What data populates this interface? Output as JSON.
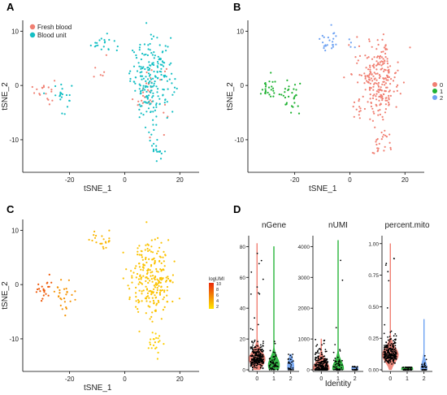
{
  "figure": {
    "panel_labels": [
      "A",
      "B",
      "C",
      "D"
    ]
  },
  "chart_data": [
    {
      "panel": "A",
      "type": "scatter",
      "xlabel": "tSNE_1",
      "ylabel": "tSNE_2",
      "xticks": [
        -20,
        0,
        20
      ],
      "yticks": [
        -10,
        0,
        10
      ],
      "xlim": [
        -37,
        27
      ],
      "ylim": [
        -16,
        12
      ],
      "legend": "top-left",
      "series": [
        {
          "name": "Fresh blood",
          "color": "#f07f72",
          "clusters": [
            {
              "cx": -29,
              "cy": -1,
              "sx": 3,
              "sy": 2,
              "n": 18
            },
            {
              "cx": 9,
              "cy": -1,
              "sx": 6,
              "sy": 5,
              "n": 30
            },
            {
              "cx": -8,
              "cy": 3,
              "sx": 3,
              "sy": 3,
              "n": 6
            }
          ]
        },
        {
          "name": "Blood unit",
          "color": "#14bfc4",
          "clusters": [
            {
              "cx": -23,
              "cy": -2,
              "sx": 3,
              "sy": 2.5,
              "n": 22
            },
            {
              "cx": -8,
              "cy": 8,
              "sx": 3.5,
              "sy": 1.6,
              "n": 20
            },
            {
              "cx": 10,
              "cy": 1,
              "sx": 6.5,
              "sy": 6,
              "n": 210
            },
            {
              "cx": 11,
              "cy": -11,
              "sx": 3,
              "sy": 2,
              "n": 20
            }
          ]
        }
      ]
    },
    {
      "panel": "B",
      "type": "scatter",
      "xlabel": "tSNE_1",
      "ylabel": "tSNE_2",
      "xticks": [
        -20,
        0,
        20
      ],
      "yticks": [
        -10,
        0,
        10
      ],
      "xlim": [
        -37,
        27
      ],
      "ylim": [
        -16,
        12
      ],
      "legend": "right",
      "series": [
        {
          "name": "0",
          "color": "#f07f72",
          "clusters": [
            {
              "cx": 10,
              "cy": 1,
              "sx": 6.5,
              "sy": 6,
              "n": 250
            },
            {
              "cx": 11,
              "cy": -11,
              "sx": 3,
              "sy": 2,
              "n": 22
            }
          ]
        },
        {
          "name": "1",
          "color": "#1fb232",
          "clusters": [
            {
              "cx": -29,
              "cy": -0.5,
              "sx": 3,
              "sy": 2,
              "n": 25
            },
            {
              "cx": -22,
              "cy": -2,
              "sx": 3,
              "sy": 2.5,
              "n": 30
            }
          ]
        },
        {
          "name": "2",
          "color": "#6ea2f2",
          "clusters": [
            {
              "cx": -8,
              "cy": 8,
              "sx": 3.5,
              "sy": 1.6,
              "n": 24
            },
            {
              "cx": 1,
              "cy": 8,
              "sx": 2,
              "sy": 2,
              "n": 4
            }
          ]
        }
      ]
    },
    {
      "panel": "C",
      "type": "scatter",
      "xlabel": "tSNE_1",
      "ylabel": "tSNE_2",
      "xticks": [
        -20,
        0,
        20
      ],
      "yticks": [
        -10,
        0,
        10
      ],
      "xlim": [
        -37,
        27
      ],
      "ylim": [
        -16,
        12
      ],
      "legend": "right",
      "color_scale": {
        "name": "logUMI",
        "ticks": [
          10,
          8,
          6,
          4,
          2
        ],
        "low_color": "#ffe600",
        "high_color": "#e8280a"
      },
      "clusters": [
        {
          "cx": -29,
          "cy": -0.5,
          "sx": 3,
          "sy": 2,
          "n": 22,
          "value": 8
        },
        {
          "cx": -22,
          "cy": -2,
          "sx": 3,
          "sy": 2.5,
          "n": 28,
          "value": 5.5
        },
        {
          "cx": -8,
          "cy": 8,
          "sx": 3.5,
          "sy": 1.6,
          "n": 22,
          "value": 4
        },
        {
          "cx": 10,
          "cy": 1,
          "sx": 6.5,
          "sy": 6,
          "n": 240,
          "value": 3.5
        },
        {
          "cx": 11,
          "cy": -11,
          "sx": 3,
          "sy": 2,
          "n": 20,
          "value": 3
        }
      ]
    },
    {
      "panel": "D",
      "type": "violin",
      "xlabel": "Identity",
      "categories": [
        "0",
        "1",
        "2"
      ],
      "colors": [
        "#f07f72",
        "#1fb232",
        "#6ea2f2"
      ],
      "subplots": [
        {
          "title": "nGene",
          "yticks": [
            0,
            20,
            40,
            60,
            80
          ],
          "ylim": [
            0,
            86
          ],
          "medians": [
            7,
            3,
            2
          ],
          "maxima": [
            82,
            80,
            10
          ],
          "n": [
            260,
            55,
            28
          ]
        },
        {
          "title": "nUMI",
          "yticks": [
            0,
            1000,
            2000,
            3000,
            4000
          ],
          "ylim": [
            0,
            4300
          ],
          "medians": [
            40,
            30,
            20
          ],
          "maxima": [
            1000,
            4200,
            100
          ],
          "n": [
            260,
            55,
            28
          ]
        },
        {
          "title": "percent.mito",
          "yticks": [
            0.0,
            0.25,
            0.5,
            0.75,
            1.0
          ],
          "ylim": [
            0,
            1.05
          ],
          "medians": [
            0.12,
            0,
            0
          ],
          "maxima": [
            1.0,
            0.02,
            0.4
          ],
          "n": [
            260,
            55,
            28
          ]
        }
      ]
    }
  ]
}
